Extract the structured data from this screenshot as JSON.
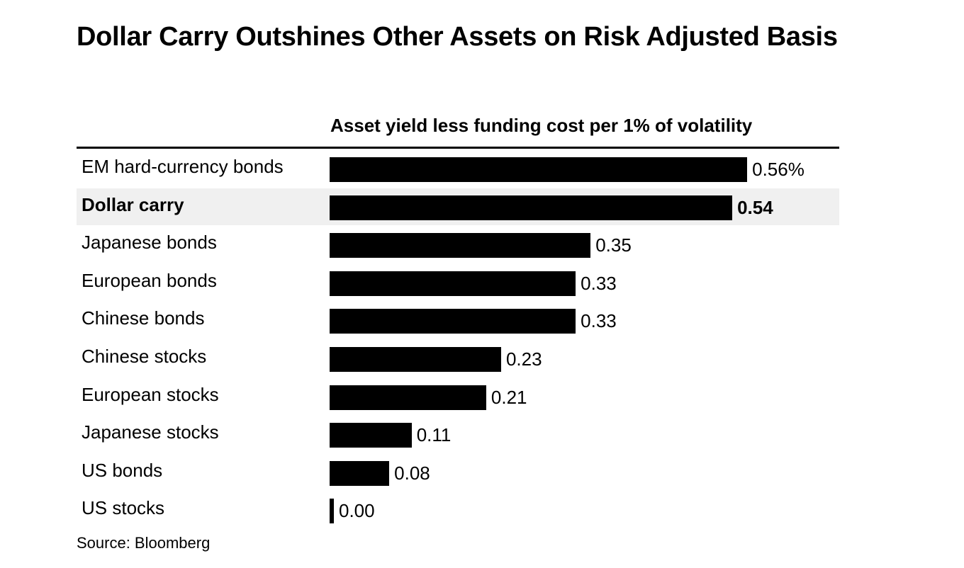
{
  "chart_data": {
    "type": "bar",
    "orientation": "horizontal",
    "title": "Dollar Carry Outshines Other Assets on Risk Adjusted Basis",
    "subtitle": "Asset yield less funding cost per 1% of volatility",
    "categories": [
      "EM hard-currency bonds",
      "Dollar carry",
      "Japanese bonds",
      "European bonds",
      "Chinese bonds",
      "Chinese stocks",
      "European stocks",
      "Japanese stocks",
      "US bonds",
      "US stocks"
    ],
    "values": [
      0.56,
      0.54,
      0.35,
      0.33,
      0.33,
      0.23,
      0.21,
      0.11,
      0.08,
      0.0
    ],
    "value_labels": [
      "0.56%",
      "0.54",
      "0.35",
      "0.33",
      "0.33",
      "0.23",
      "0.21",
      "0.11",
      "0.08",
      "0.00"
    ],
    "highlighted": "Dollar carry",
    "bar_color": "#000000",
    "highlight_color": "#f0f0f0",
    "grid": false,
    "source": "Source: Bloomberg"
  }
}
